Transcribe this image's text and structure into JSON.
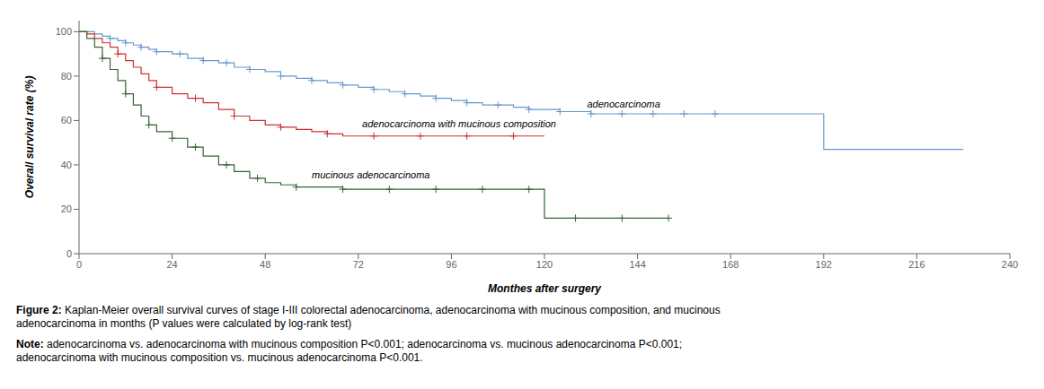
{
  "chart_data": {
    "type": "line",
    "line_style": "step",
    "grid": false,
    "xlabel": "Monthes after surgery",
    "ylabel": "Overall survival rate (%)",
    "xlim": [
      0,
      240
    ],
    "ylim": [
      0,
      105
    ],
    "xticks": [
      0,
      24,
      48,
      72,
      96,
      120,
      144,
      168,
      192,
      216,
      240
    ],
    "yticks": [
      0,
      20,
      40,
      60,
      80,
      100
    ],
    "series": [
      {
        "color": "#6699cc",
        "marker": "plus",
        "x": [
          0,
          2,
          4,
          6,
          8,
          10,
          12,
          14,
          16,
          18,
          20,
          24,
          28,
          32,
          36,
          40,
          44,
          48,
          52,
          56,
          60,
          64,
          68,
          72,
          76,
          80,
          84,
          88,
          92,
          96,
          100,
          104,
          108,
          112,
          116,
          120,
          124,
          128,
          132,
          136,
          140,
          144,
          148,
          152,
          156,
          160,
          164,
          168,
          192,
          216,
          228
        ],
        "values": [
          100,
          100,
          99,
          98,
          97,
          96,
          95,
          94,
          93,
          92,
          91,
          90,
          88,
          87,
          86,
          84,
          83,
          82,
          80,
          79,
          78,
          77,
          76,
          75,
          74,
          73,
          72,
          71,
          70,
          69,
          68,
          67,
          67,
          66,
          65,
          65,
          64,
          64,
          63,
          63,
          63,
          63,
          63,
          63,
          63,
          63,
          63,
          63,
          47,
          47,
          47
        ],
        "censors": {
          "x": [
            8,
            12,
            16,
            20,
            26,
            32,
            38,
            44,
            52,
            60,
            68,
            76,
            84,
            92,
            100,
            108,
            116,
            124,
            132,
            140,
            148,
            156,
            164
          ],
          "y": [
            97,
            95,
            93,
            91,
            90,
            87,
            86,
            83,
            80,
            78,
            76,
            74,
            72,
            70,
            68,
            67,
            65,
            64,
            63,
            63,
            63,
            63,
            63
          ]
        }
      },
      {
        "color": "#cc3333",
        "marker": "plus",
        "x": [
          0,
          2,
          4,
          6,
          8,
          10,
          12,
          14,
          16,
          18,
          20,
          24,
          28,
          32,
          36,
          40,
          44,
          48,
          52,
          56,
          60,
          64,
          68,
          72,
          76,
          80,
          84,
          88,
          92,
          96,
          100,
          104,
          108,
          112,
          116,
          120
        ],
        "values": [
          100,
          99,
          97,
          95,
          93,
          90,
          87,
          84,
          81,
          78,
          75,
          72,
          70,
          68,
          65,
          62,
          60,
          58,
          57,
          56,
          55,
          54,
          53,
          53,
          53,
          53,
          53,
          53,
          53,
          53,
          53,
          53,
          53,
          53,
          53,
          53
        ],
        "censors": {
          "x": [
            10,
            20,
            30,
            40,
            52,
            64,
            76,
            88,
            100,
            112
          ],
          "y": [
            90,
            75,
            70,
            62,
            57,
            54,
            53,
            53,
            53,
            53
          ]
        }
      },
      {
        "color": "#336633",
        "marker": "plus",
        "x": [
          0,
          2,
          4,
          6,
          8,
          10,
          12,
          14,
          16,
          18,
          20,
          24,
          28,
          32,
          36,
          40,
          44,
          48,
          52,
          56,
          60,
          64,
          68,
          72,
          76,
          80,
          84,
          88,
          92,
          96,
          100,
          104,
          108,
          112,
          116,
          120,
          124,
          128,
          132,
          136,
          140,
          144,
          148,
          152
        ],
        "values": [
          100,
          97,
          93,
          88,
          83,
          78,
          72,
          67,
          62,
          58,
          55,
          52,
          48,
          44,
          40,
          37,
          34,
          32,
          31,
          30,
          30,
          30,
          29,
          29,
          29,
          29,
          29,
          29,
          29,
          29,
          29,
          29,
          29,
          29,
          29,
          16,
          16,
          16,
          16,
          16,
          16,
          16,
          16,
          16
        ],
        "censors": {
          "x": [
            6,
            12,
            18,
            24,
            30,
            38,
            46,
            56,
            68,
            80,
            92,
            104,
            116,
            128,
            140,
            152
          ],
          "y": [
            88,
            72,
            58,
            52,
            48,
            40,
            34,
            30,
            29,
            29,
            29,
            29,
            29,
            16,
            16,
            16
          ]
        }
      }
    ],
    "annotations": [
      {
        "text": "adenocarcinoma",
        "x": 131,
        "y": 66
      },
      {
        "text": "adenocarcinoma with mucinous composition",
        "x": 73,
        "y": 57
      },
      {
        "text": "mucinous adenocarcinoma",
        "x": 60,
        "y": 34
      }
    ],
    "caption": "Figure 2: Kaplan-Meier overall survival curves of stage I-III colorectal adenocarcinoma, adenocarcinoma with mucinous composition, and mucinous\nadenocarcinoma in months (P values were calculated by log-rank test)",
    "note": "Note: adenocarcinoma vs. adenocarcinoma with mucinous composition P<0.001; adenocarcinoma vs. mucinous adenocarcinoma P<0.001;\nadenocarcinoma with mucinous composition vs. mucinous adenocarcinoma P<0.001."
  }
}
